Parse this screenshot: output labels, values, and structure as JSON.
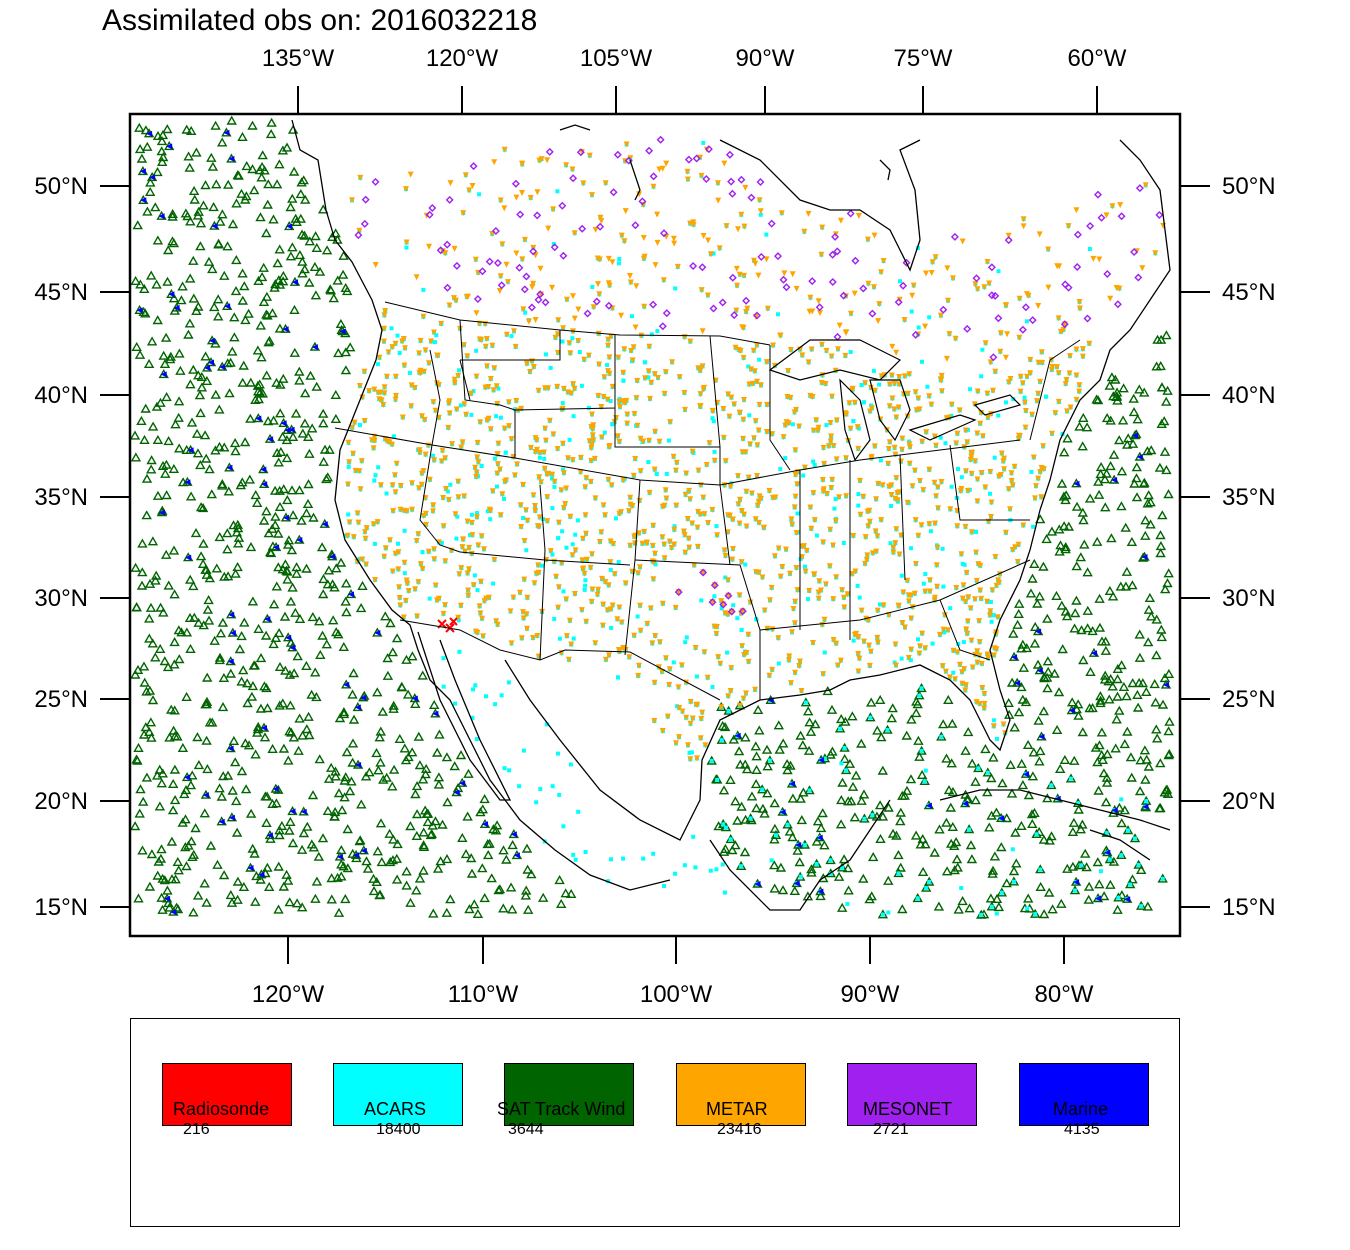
{
  "title": "Assimilated obs on: 2016032218",
  "top_lon_labels": [
    "135°W",
    "120°W",
    "105°W",
    "90°W",
    "75°W",
    "60°W"
  ],
  "bottom_lon_labels": [
    "120°W",
    "110°W",
    "100°W",
    "90°W",
    "80°W"
  ],
  "lat_labels": [
    "50°N",
    "45°N",
    "40°N",
    "35°N",
    "30°N",
    "25°N",
    "20°N",
    "15°N"
  ],
  "colors": {
    "radiosonde": "#ff0000",
    "acars": "#00ffff",
    "sat_track_wind": "#006400",
    "metar": "#ffa500",
    "mesonet": "#a020f0",
    "marine": "#0000ff"
  },
  "legend": [
    {
      "label": "Radiosonde",
      "count": "216",
      "color": "#ff0000"
    },
    {
      "label": "ACARS",
      "count": "18400",
      "color": "#00ffff"
    },
    {
      "label": "SAT Track Wind",
      "count": "3644",
      "color": "#006400"
    },
    {
      "label": "METAR",
      "count": "23416",
      "color": "#ffa500"
    },
    {
      "label": "MESONET",
      "count": "2721",
      "color": "#a020f0"
    },
    {
      "label": "Marine",
      "count": "4135",
      "color": "#0000ff"
    }
  ]
}
